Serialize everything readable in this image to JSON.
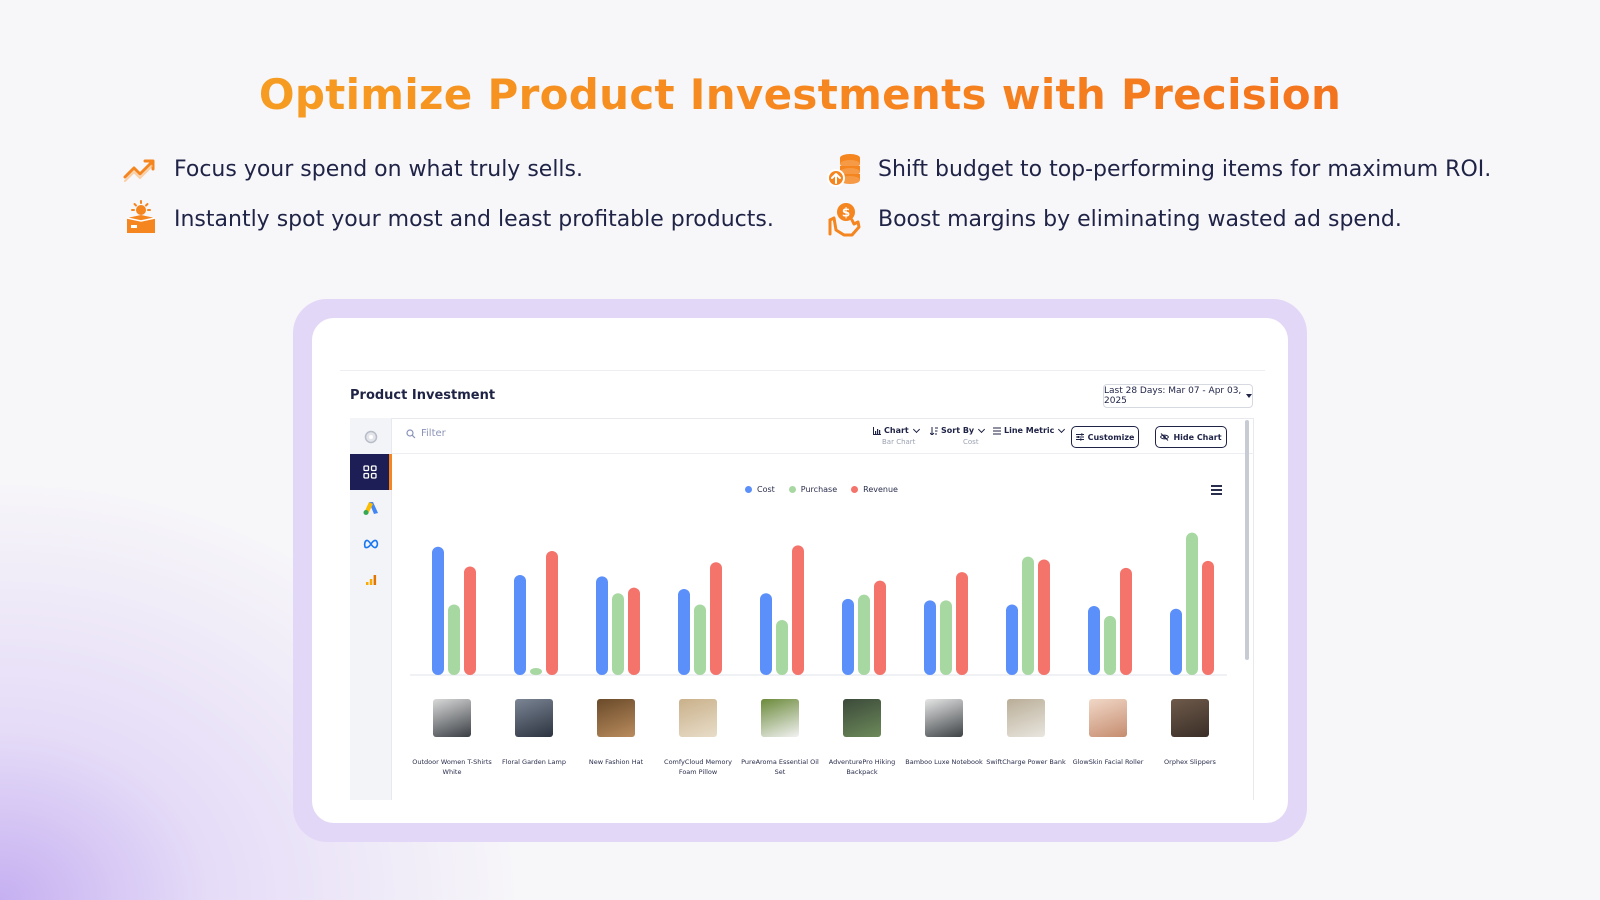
{
  "headline": "Optimize Product Investments with Precision",
  "features": [
    {
      "icon": "trend-up-icon",
      "text": "Focus your spend on what truly sells."
    },
    {
      "icon": "box-sun-icon",
      "text": "Instantly spot your most and least profitable products."
    },
    {
      "icon": "coins-up-icon",
      "text": "Shift budget to top-performing items for maximum ROI."
    },
    {
      "icon": "hand-dollar-icon",
      "text": "Boost margins by eliminating wasted ad spend."
    }
  ],
  "panel": {
    "title": "Product Investment",
    "date_range": "Last 28 Days: Mar 07 - Apr 03, 2025",
    "filter_placeholder": "Filter",
    "toolbar": {
      "chart_label": "Chart",
      "chart_sub": "Bar Chart",
      "sort_label": "Sort By",
      "sort_sub": "Cost",
      "line_metric_label": "Line Metric",
      "customize_label": "Customize",
      "hide_chart_label": "Hide Chart"
    },
    "sidebar_icons": [
      "circle-icon",
      "grid-icon",
      "google-ads-icon",
      "meta-icon",
      "analytics-icon"
    ]
  },
  "colors": {
    "cost": "#5b8ff9",
    "purchase": "#a8d8a2",
    "revenue": "#f4736a",
    "accent": "#f4851f"
  },
  "chart_data": {
    "type": "bar",
    "legend": [
      "Cost",
      "Purchase",
      "Revenue"
    ],
    "categories": [
      "Outdoor Women T-Shirts White",
      "Floral Garden Lamp",
      "New Fashion Hat",
      "ComfyCloud Memory Foam Pillow",
      "PureAroma Essential Oil Set",
      "AdventurePro Hiking Backpack",
      "Bamboo Luxe Notebook",
      "SwiftCharge Power Bank",
      "GlowSkin Facial Roller",
      "Orphex Slippers"
    ],
    "series": [
      {
        "name": "Cost",
        "values": [
          91,
          71,
          70,
          61,
          58,
          54,
          53,
          50,
          49,
          47
        ]
      },
      {
        "name": "Purchase",
        "values": [
          50,
          5,
          58,
          50,
          39,
          57,
          53,
          84,
          42,
          101
        ]
      },
      {
        "name": "Revenue",
        "values": [
          77,
          88,
          62,
          80,
          92,
          67,
          73,
          82,
          76,
          81
        ]
      }
    ],
    "ylim": [
      0,
      110
    ],
    "legend_position": "top-center",
    "grid": false
  }
}
